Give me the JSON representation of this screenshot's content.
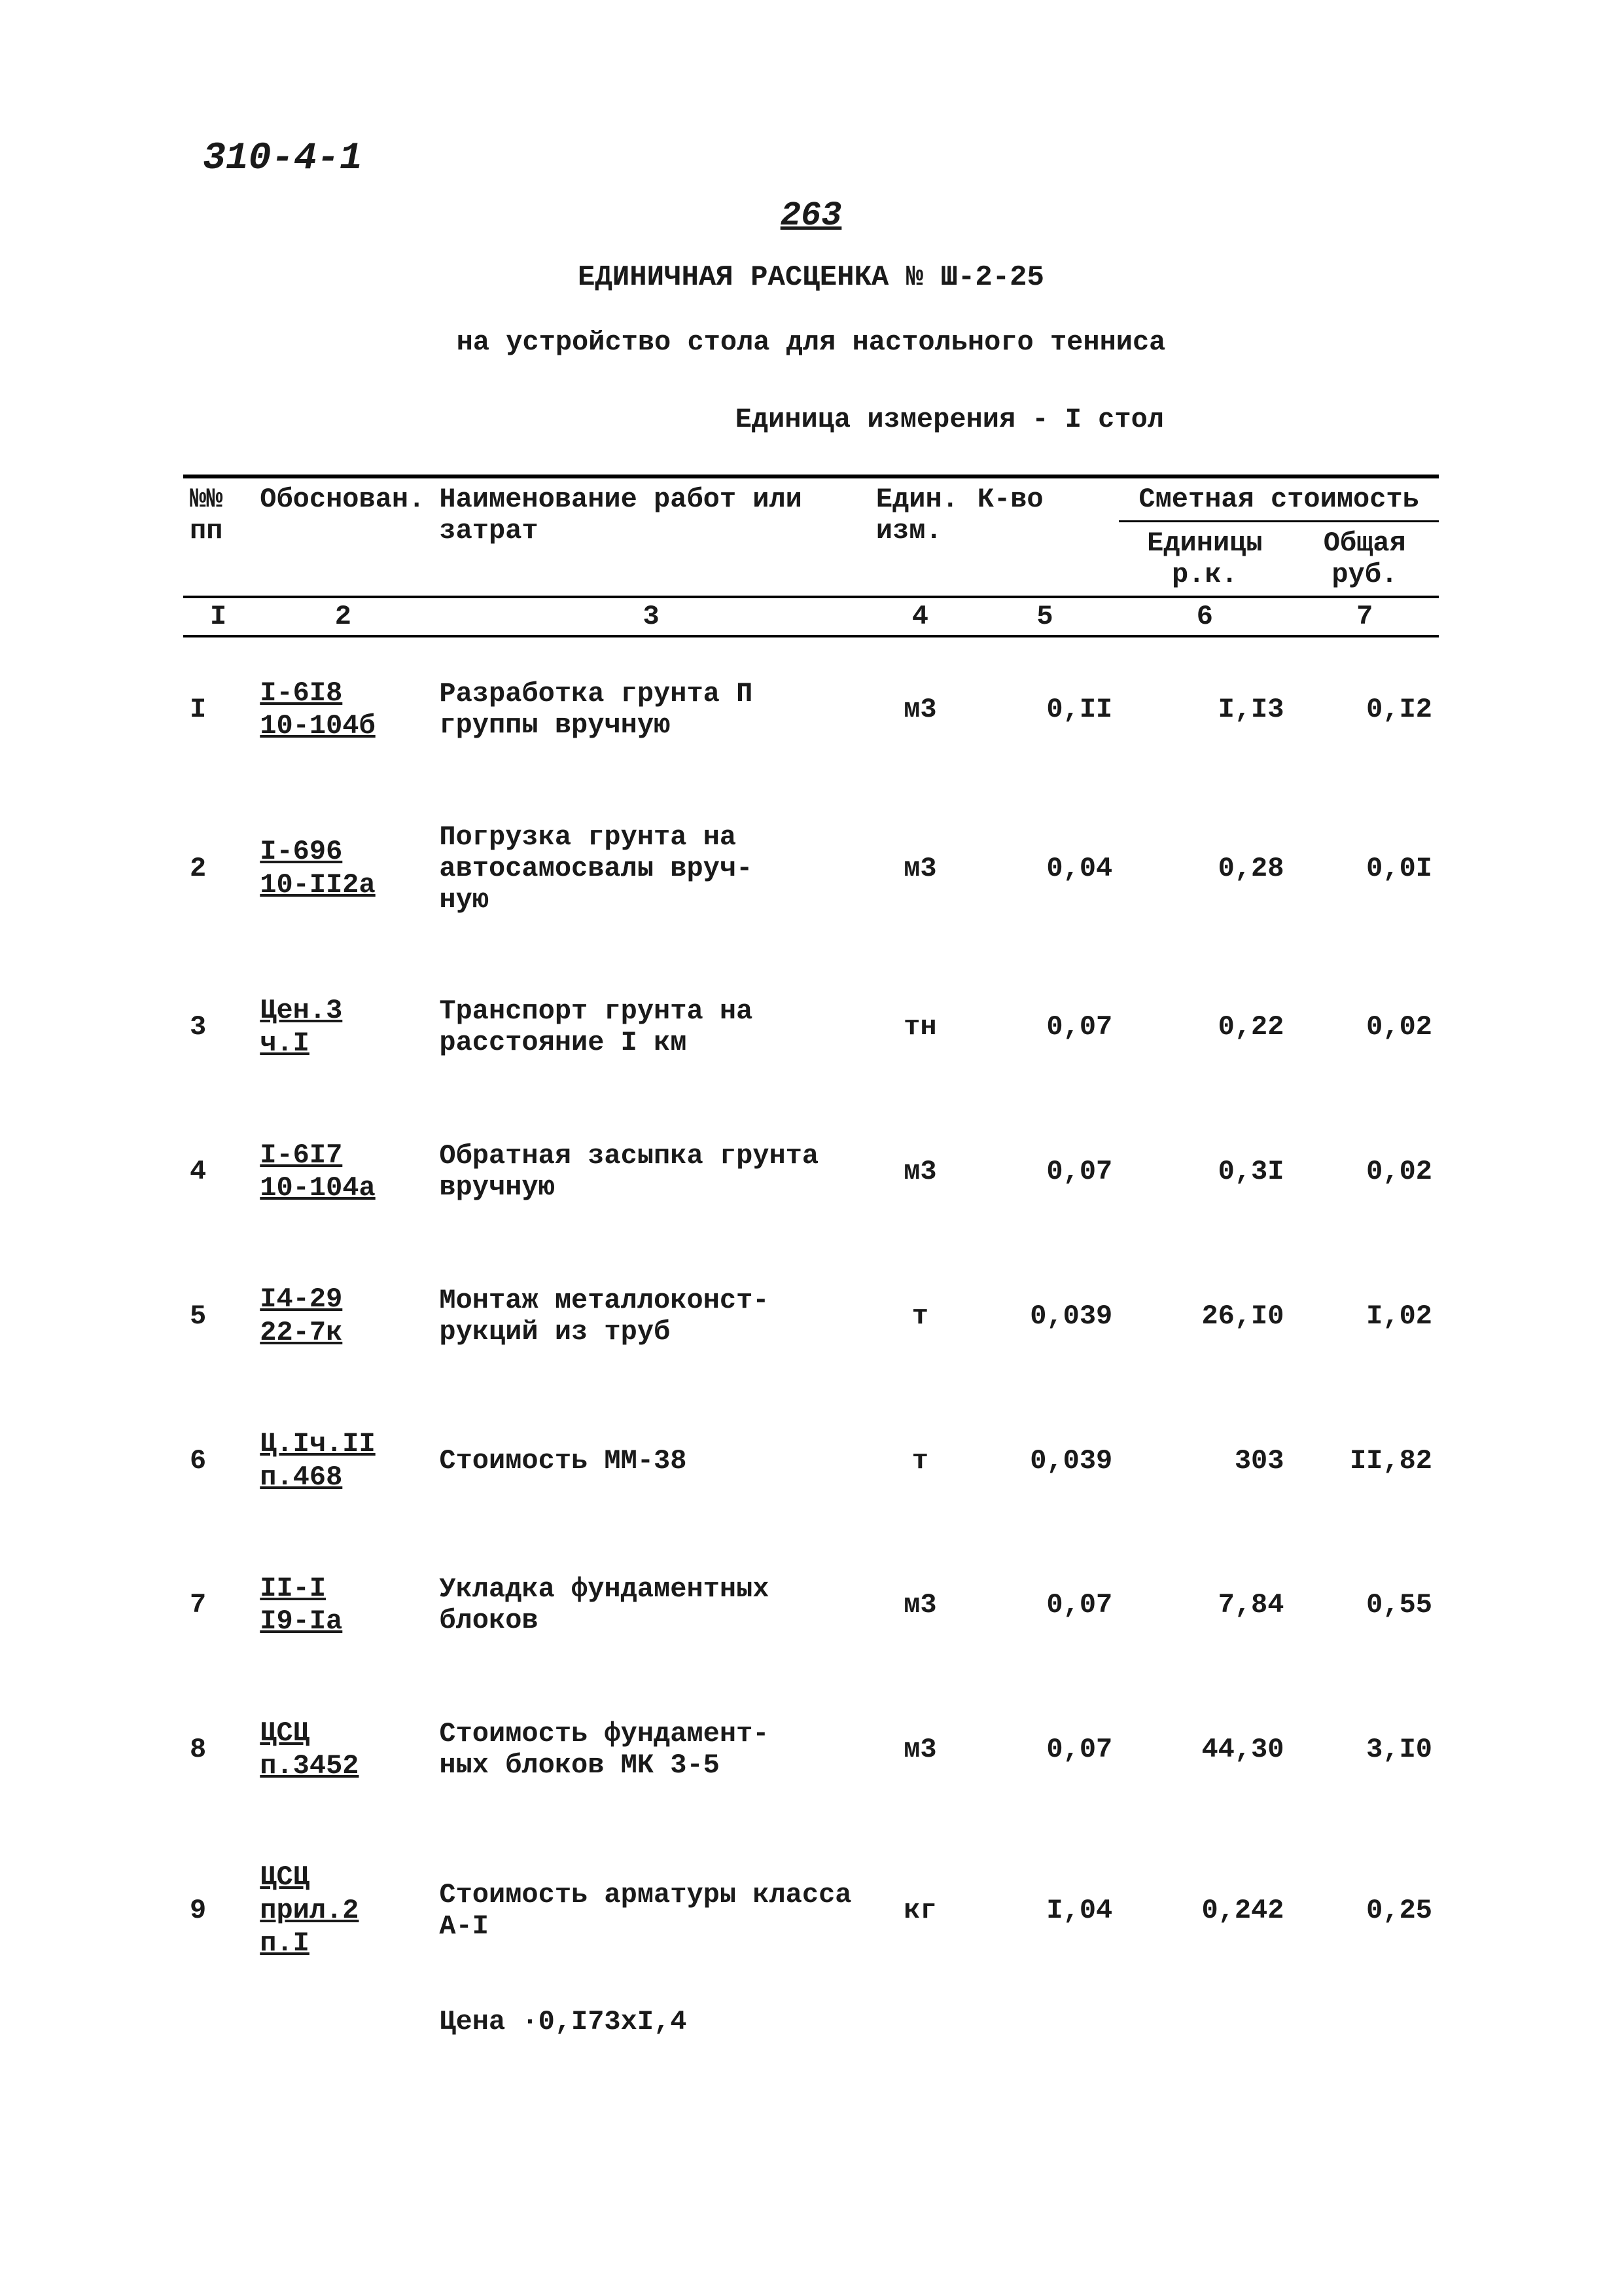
{
  "top_left": "310-4-1",
  "page_number": "263",
  "title": "ЕДИНИЧНАЯ РАСЦЕНКА № Ш-2-25",
  "subtitle": "на устройство стола для настольного тенниса",
  "unit_line": "Единица измерения - I стол",
  "columns": {
    "h1": "№№\nпп",
    "h2": "Обоснован.",
    "h3": "Наименование работ или затрат",
    "h4": "Един. изм.",
    "h5": "К-во",
    "h6_group": "Сметная стоимость",
    "h6": "Единицы р.к.",
    "h7": "Общая руб."
  },
  "colnums": [
    "I",
    "2",
    "3",
    "4",
    "5",
    "6",
    "7"
  ],
  "rows": [
    {
      "n": "I",
      "basis": "I-6I8\n10-104б",
      "name": "Разработка грунта П группы вручную",
      "unit": "м3",
      "qty": "0,II",
      "price": "I,I3",
      "total": "0,I2"
    },
    {
      "n": "2",
      "basis": "I-696\n10-II2а",
      "name": "Погрузка грунта на автосамосвалы вруч-\nную",
      "unit": "м3",
      "qty": "0,04",
      "price": "0,28",
      "total": "0,0I"
    },
    {
      "n": "3",
      "basis": "Цен.3\nч.I",
      "name": "Транспорт грунта на расстояние I км",
      "unit": "тн",
      "qty": "0,07",
      "price": "0,22",
      "total": "0,02"
    },
    {
      "n": "4",
      "basis": "I-6I7\n10-104а",
      "name": "Обратная засыпка грунта вручную",
      "unit": "м3",
      "qty": "0,07",
      "price": "0,3I",
      "total": "0,02"
    },
    {
      "n": "5",
      "basis": "I4-29\n22-7к",
      "name": "Монтаж металлоконст-\nрукций из труб",
      "unit": "т",
      "qty": "0,039",
      "price": "26,I0",
      "total": "I,02"
    },
    {
      "n": "6",
      "basis": "Ц.Iч.II\nп.468",
      "name": "Стоимость ММ-38",
      "unit": "т",
      "qty": "0,039",
      "price": "303",
      "total": "II,82"
    },
    {
      "n": "7",
      "basis": "II-I\nI9-Iа",
      "name": "Укладка фундаментных блоков",
      "unit": "м3",
      "qty": "0,07",
      "price": "7,84",
      "total": "0,55"
    },
    {
      "n": "8",
      "basis": "ЦСЦ\nп.3452",
      "name": "Стоимость фундамент-\nных блоков МК 3-5",
      "unit": "м3",
      "qty": "0,07",
      "price": "44,30",
      "total": "3,I0"
    },
    {
      "n": "9",
      "basis": "ЦСЦ\nприл.2\nп.I",
      "name": "Стоимость арматуры класса А-I",
      "unit": "кг",
      "qty": "I,04",
      "price": "0,242",
      "total": "0,25",
      "note": "Цена ·0,I73xI,4"
    }
  ]
}
